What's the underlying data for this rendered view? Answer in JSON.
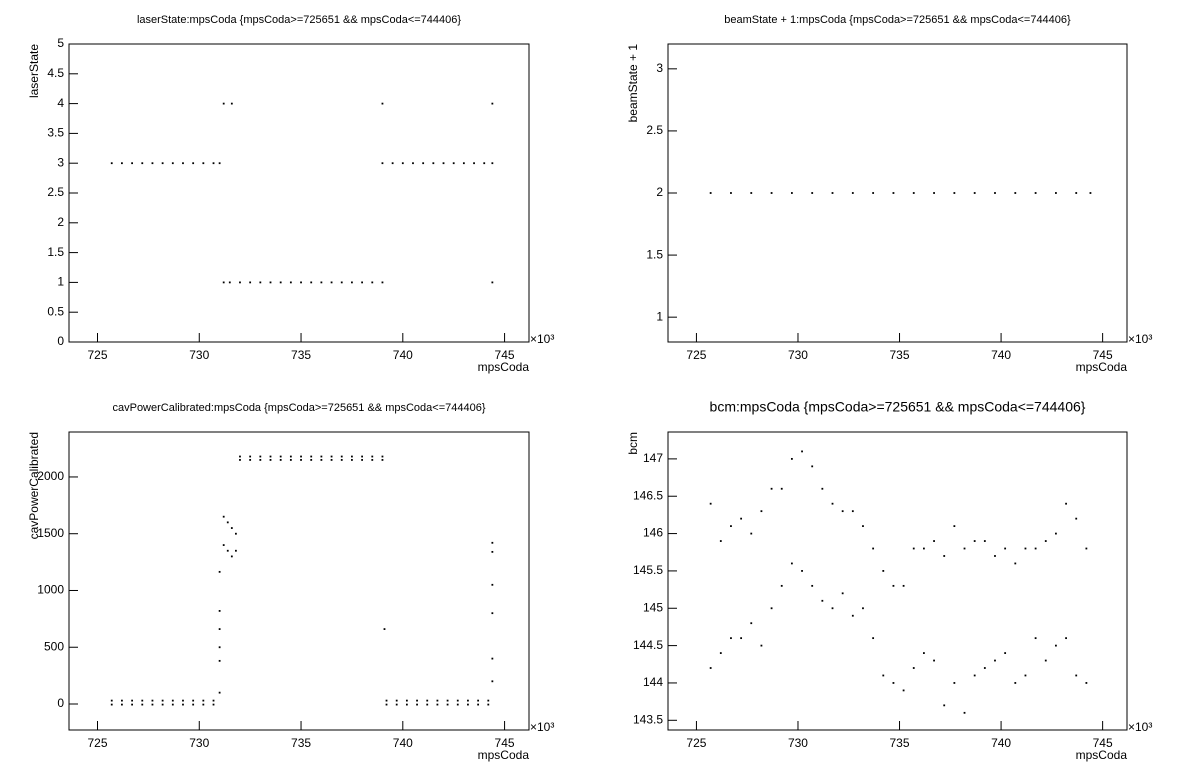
{
  "chart_data": [
    {
      "type": "scatter",
      "title": "laserState:mpsCoda {mpsCoda>=725651 && mpsCoda<=744406}",
      "xlabel": "mpsCoda",
      "ylabel": "laserState",
      "x_scale_label": "×10³",
      "color": "#000000",
      "xlim": [
        723.6,
        746.2
      ],
      "xticks": [
        725,
        730,
        735,
        740,
        745
      ],
      "ylim": [
        0,
        5
      ],
      "yticks": [
        0,
        0.5,
        1,
        1.5,
        2,
        2.5,
        3,
        3.5,
        4,
        4.5,
        5
      ],
      "x": [
        725.7,
        726.2,
        726.7,
        727.2,
        727.7,
        728.2,
        728.7,
        729.2,
        729.7,
        730.2,
        730.7,
        731.0,
        731.2,
        731.6,
        731.2,
        731.5,
        732.0,
        732.5,
        733.0,
        733.5,
        734.0,
        734.5,
        735.0,
        735.5,
        736.0,
        736.5,
        737.0,
        737.5,
        738.0,
        738.5,
        739.0,
        739.0,
        739.5,
        740.0,
        740.5,
        741.0,
        741.5,
        742.0,
        742.5,
        743.0,
        743.5,
        744.0,
        744.4,
        739.0,
        744.4,
        744.4
      ],
      "y": [
        3,
        3,
        3,
        3,
        3,
        3,
        3,
        3,
        3,
        3,
        3,
        3,
        4,
        4,
        1,
        1,
        1,
        1,
        1,
        1,
        1,
        1,
        1,
        1,
        1,
        1,
        1,
        1,
        1,
        1,
        1,
        3,
        3,
        3,
        3,
        3,
        3,
        3,
        3,
        3,
        3,
        3,
        3,
        4,
        4,
        1
      ]
    },
    {
      "type": "scatter",
      "title": "beamState + 1:mpsCoda {mpsCoda>=725651 && mpsCoda<=744406}",
      "xlabel": "mpsCoda",
      "ylabel": "beamState + 1",
      "x_scale_label": "×10³",
      "color": "#000000",
      "xlim": [
        723.6,
        746.2
      ],
      "xticks": [
        725,
        730,
        735,
        740,
        745
      ],
      "ylim": [
        0.8,
        3.2
      ],
      "yticks": [
        1,
        1.5,
        2,
        2.5,
        3
      ],
      "x": [
        725.7,
        726.7,
        727.7,
        728.7,
        729.7,
        730.7,
        731.7,
        732.7,
        733.7,
        734.7,
        735.7,
        736.7,
        737.7,
        738.7,
        739.7,
        740.7,
        741.7,
        742.7,
        743.7,
        744.4
      ],
      "y": [
        2,
        2,
        2,
        2,
        2,
        2,
        2,
        2,
        2,
        2,
        2,
        2,
        2,
        2,
        2,
        2,
        2,
        2,
        2,
        2
      ]
    },
    {
      "type": "scatter",
      "title": "cavPowerCalibrated:mpsCoda {mpsCoda>=725651 && mpsCoda<=744406}",
      "xlabel": "mpsCoda",
      "ylabel": "cavPowerCalibrated",
      "x_scale_label": "×10³",
      "color": "#000000",
      "xlim": [
        723.6,
        746.2
      ],
      "xticks": [
        725,
        730,
        735,
        740,
        745
      ],
      "ylim": [
        -229,
        2396
      ],
      "yticks": [
        0,
        500,
        1000,
        1500,
        2000
      ],
      "x": [
        725.7,
        725.7,
        726.2,
        726.2,
        726.7,
        726.7,
        727.2,
        727.2,
        727.7,
        727.7,
        728.2,
        728.2,
        728.7,
        728.7,
        729.2,
        729.2,
        729.7,
        729.7,
        730.2,
        730.2,
        730.7,
        730.7,
        731.0,
        731.0,
        731.0,
        731.0,
        731.0,
        731.0,
        731.2,
        731.2,
        731.4,
        731.4,
        731.6,
        731.6,
        731.8,
        731.8,
        732.0,
        732.0,
        732.5,
        732.5,
        733.0,
        733.0,
        733.5,
        733.5,
        734.0,
        734.0,
        734.5,
        734.5,
        735.0,
        735.0,
        735.5,
        735.5,
        736.0,
        736.0,
        736.5,
        736.5,
        737.0,
        737.0,
        737.5,
        737.5,
        738.0,
        738.0,
        738.5,
        738.5,
        739.0,
        739.0,
        739.1,
        739.2,
        739.2,
        739.7,
        739.7,
        740.2,
        740.2,
        740.7,
        740.7,
        741.2,
        741.2,
        741.7,
        741.7,
        742.2,
        742.2,
        742.7,
        742.7,
        743.2,
        743.2,
        743.7,
        743.7,
        744.2,
        744.2,
        744.4,
        744.4,
        744.4,
        744.4,
        744.4,
        744.4
      ],
      "y": [
        30,
        -5,
        30,
        -5,
        30,
        -5,
        30,
        -5,
        30,
        -5,
        30,
        -5,
        30,
        -5,
        30,
        -5,
        30,
        -5,
        30,
        -5,
        30,
        -5,
        1164,
        820,
        660,
        500,
        380,
        100,
        1650,
        1400,
        1600,
        1350,
        1550,
        1300,
        1500,
        1350,
        2180,
        2150,
        2180,
        2150,
        2180,
        2150,
        2180,
        2150,
        2180,
        2150,
        2180,
        2150,
        2180,
        2150,
        2180,
        2150,
        2180,
        2150,
        2180,
        2150,
        2180,
        2150,
        2180,
        2150,
        2180,
        2150,
        2180,
        2150,
        2180,
        2150,
        660,
        30,
        -5,
        30,
        -5,
        30,
        -5,
        30,
        -5,
        30,
        -5,
        30,
        -5,
        30,
        -5,
        30,
        -5,
        30,
        -5,
        30,
        -5,
        30,
        -5,
        1420,
        1340,
        1050,
        800,
        400,
        200
      ]
    },
    {
      "type": "scatter",
      "title": "bcm:mpsCoda {mpsCoda>=725651 && mpsCoda<=744406}",
      "xlabel": "mpsCoda",
      "ylabel": "bcm",
      "x_scale_label": "×10³",
      "color": "#000000",
      "xlim": [
        723.6,
        746.2
      ],
      "xticks": [
        725,
        730,
        735,
        740,
        745
      ],
      "ylim": [
        143.37,
        147.36
      ],
      "yticks": [
        143.5,
        144,
        144.5,
        145,
        145.5,
        146,
        146.5,
        147
      ],
      "x": [
        725.7,
        725.7,
        726.2,
        726.2,
        726.7,
        726.7,
        727.2,
        727.2,
        727.7,
        727.7,
        728.2,
        728.2,
        728.7,
        728.7,
        729.2,
        729.2,
        729.7,
        729.7,
        730.2,
        730.2,
        730.7,
        730.7,
        731.2,
        731.2,
        731.7,
        731.7,
        732.2,
        732.2,
        732.7,
        732.7,
        733.2,
        733.2,
        733.7,
        733.7,
        734.2,
        734.2,
        734.7,
        734.7,
        735.2,
        735.2,
        735.7,
        735.7,
        736.2,
        736.2,
        736.7,
        736.7,
        737.2,
        737.2,
        737.7,
        737.7,
        738.2,
        738.2,
        738.7,
        738.7,
        739.2,
        739.2,
        739.7,
        739.7,
        740.2,
        740.2,
        740.7,
        740.7,
        741.2,
        741.2,
        741.7,
        741.7,
        742.2,
        742.2,
        742.7,
        742.7,
        743.2,
        743.2,
        743.7,
        743.7,
        744.2,
        744.2
      ],
      "y": [
        144.2,
        146.4,
        144.4,
        145.9,
        144.6,
        146.1,
        144.6,
        146.2,
        144.8,
        146.0,
        144.5,
        146.3,
        145.0,
        146.6,
        145.3,
        146.6,
        145.6,
        147.0,
        145.5,
        147.1,
        145.3,
        146.9,
        145.1,
        146.6,
        145.0,
        146.4,
        145.2,
        146.3,
        144.9,
        146.3,
        145.0,
        146.1,
        144.6,
        145.8,
        144.1,
        145.5,
        144.0,
        145.3,
        143.9,
        145.3,
        144.2,
        145.8,
        144.4,
        145.8,
        144.3,
        145.9,
        143.7,
        145.7,
        144.0,
        146.1,
        143.6,
        145.8,
        144.1,
        145.9,
        144.2,
        145.9,
        144.3,
        145.7,
        144.4,
        145.8,
        144.0,
        145.6,
        144.1,
        145.8,
        144.6,
        145.8,
        144.3,
        145.9,
        144.5,
        146.0,
        144.6,
        146.4,
        144.1,
        146.2,
        144.0,
        145.8
      ]
    }
  ]
}
